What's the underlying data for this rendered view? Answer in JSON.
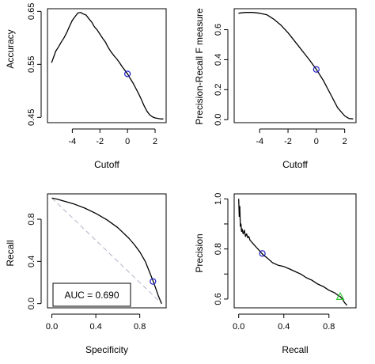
{
  "chart_data": [
    {
      "id": "accuracy",
      "type": "line",
      "xlabel": "Cutoff",
      "ylabel": "Accuracy",
      "xlim": [
        -5.8,
        2.8
      ],
      "ylim": [
        0.44,
        0.655
      ],
      "xticks": [
        -4,
        -2,
        0,
        2
      ],
      "yticks": [
        0.45,
        0.55,
        0.65
      ],
      "xtick_labels": [
        "-4",
        "-2",
        "0",
        "2"
      ],
      "ytick_labels": [
        "0.45",
        "0.55",
        "0.65"
      ],
      "series": [
        {
          "x": [
            -5.5,
            -5.2,
            -5.0,
            -4.8,
            -4.6,
            -4.4,
            -4.2,
            -4.0,
            -3.8,
            -3.6,
            -3.4,
            -3.2,
            -3.0,
            -2.8,
            -2.6,
            -2.4,
            -2.2,
            -2.0,
            -1.8,
            -1.6,
            -1.4,
            -1.2,
            -1.0,
            -0.8,
            -0.6,
            -0.4,
            -0.2,
            0.0,
            0.2,
            0.4,
            0.6,
            0.8,
            1.0,
            1.2,
            1.4,
            1.6,
            1.8,
            2.0,
            2.2,
            2.4,
            2.6
          ],
          "y": [
            0.553,
            0.575,
            0.583,
            0.592,
            0.6,
            0.61,
            0.622,
            0.633,
            0.64,
            0.647,
            0.648,
            0.645,
            0.643,
            0.636,
            0.63,
            0.621,
            0.615,
            0.607,
            0.599,
            0.592,
            0.582,
            0.574,
            0.567,
            0.561,
            0.554,
            0.546,
            0.539,
            0.532,
            0.523,
            0.515,
            0.505,
            0.495,
            0.484,
            0.472,
            0.462,
            0.455,
            0.451,
            0.449,
            0.448,
            0.447,
            0.447
          ]
        }
      ],
      "marker": {
        "x": 0.0,
        "y": 0.532,
        "color": "#2020c8",
        "shape": "circle"
      }
    },
    {
      "id": "prf",
      "type": "line",
      "xlabel": "Cutoff",
      "ylabel": "Precision-Recall F measure",
      "xlim": [
        -5.8,
        2.8
      ],
      "ylim": [
        -0.02,
        0.74
      ],
      "xticks": [
        -4,
        -2,
        0,
        2
      ],
      "yticks": [
        0.0,
        0.2,
        0.4,
        0.6
      ],
      "xtick_labels": [
        "-4",
        "-2",
        "0",
        "2"
      ],
      "ytick_labels": [
        "0.0",
        "0.2",
        "0.4",
        "0.6"
      ],
      "series": [
        {
          "x": [
            -5.5,
            -5.0,
            -4.5,
            -4.0,
            -3.5,
            -3.0,
            -2.5,
            -2.0,
            -1.5,
            -1.0,
            -0.5,
            0.0,
            0.5,
            1.0,
            1.5,
            2.0,
            2.3,
            2.6
          ],
          "y": [
            0.71,
            0.715,
            0.715,
            0.71,
            0.7,
            0.67,
            0.63,
            0.58,
            0.52,
            0.46,
            0.4,
            0.335,
            0.26,
            0.17,
            0.08,
            0.025,
            0.008,
            0.005
          ]
        }
      ],
      "marker": {
        "x": 0.0,
        "y": 0.335,
        "color": "#2020c8",
        "shape": "circle"
      }
    },
    {
      "id": "roc",
      "type": "line",
      "xlabel": "Specificity",
      "ylabel": "Recall",
      "xlim": [
        -0.04,
        1.04
      ],
      "ylim": [
        -0.04,
        1.04
      ],
      "xticks": [
        0.0,
        0.4,
        0.8
      ],
      "yticks": [
        0.0,
        0.4,
        0.8
      ],
      "xtick_labels": [
        "0.0",
        "0.4",
        "0.8"
      ],
      "ytick_labels": [
        "0.0",
        "0.4",
        "0.8"
      ],
      "series": [
        {
          "x": [
            0.0,
            0.05,
            0.1,
            0.15,
            0.2,
            0.3,
            0.4,
            0.5,
            0.6,
            0.7,
            0.75,
            0.8,
            0.85,
            0.9,
            0.93,
            0.95,
            0.97,
            0.99,
            1.0
          ],
          "y": [
            1.0,
            0.99,
            0.975,
            0.96,
            0.945,
            0.905,
            0.855,
            0.795,
            0.72,
            0.62,
            0.56,
            0.49,
            0.4,
            0.27,
            0.19,
            0.13,
            0.07,
            0.02,
            0.0
          ]
        }
      ],
      "reference_line": {
        "from": [
          0,
          1
        ],
        "to": [
          1,
          0
        ]
      },
      "marker": {
        "x": 0.92,
        "y": 0.21,
        "color": "#2020c8",
        "shape": "circle"
      },
      "legend": {
        "text": "AUC = 0.690",
        "placement": "bottom-left"
      }
    },
    {
      "id": "pr",
      "type": "line",
      "xlabel": "Recall",
      "ylabel": "Precision",
      "xlim": [
        -0.04,
        1.04
      ],
      "ylim": [
        0.565,
        1.02
      ],
      "xticks": [
        0.0,
        0.4,
        0.8
      ],
      "yticks": [
        0.6,
        0.7,
        0.8,
        0.9,
        1.0
      ],
      "xtick_labels": [
        "0.0",
        "0.4",
        "0.8"
      ],
      "ytick_labels": [
        "0.6",
        "",
        "0.8",
        "",
        "1.0"
      ],
      "series": [
        {
          "x": [
            0.0,
            0.005,
            0.01,
            0.015,
            0.02,
            0.025,
            0.03,
            0.04,
            0.05,
            0.06,
            0.07,
            0.08,
            0.09,
            0.1,
            0.12,
            0.14,
            0.16,
            0.18,
            0.2,
            0.22,
            0.25,
            0.3,
            0.35,
            0.4,
            0.45,
            0.5,
            0.55,
            0.6,
            0.65,
            0.7,
            0.75,
            0.8,
            0.85,
            0.88,
            0.9,
            0.92,
            0.94,
            0.96
          ],
          "y": [
            1.0,
            0.93,
            0.97,
            0.89,
            0.9,
            0.87,
            0.88,
            0.86,
            0.875,
            0.85,
            0.86,
            0.845,
            0.85,
            0.835,
            0.825,
            0.815,
            0.805,
            0.795,
            0.785,
            0.775,
            0.765,
            0.745,
            0.735,
            0.73,
            0.72,
            0.71,
            0.7,
            0.685,
            0.675,
            0.66,
            0.65,
            0.635,
            0.625,
            0.615,
            0.61,
            0.6,
            0.585,
            0.575
          ]
        }
      ],
      "marker": {
        "x": 0.21,
        "y": 0.782,
        "color": "#2020c8",
        "shape": "circle"
      },
      "marker2": {
        "x": 0.9,
        "y": 0.61,
        "color": "#33cc33",
        "shape": "triangle"
      }
    }
  ]
}
